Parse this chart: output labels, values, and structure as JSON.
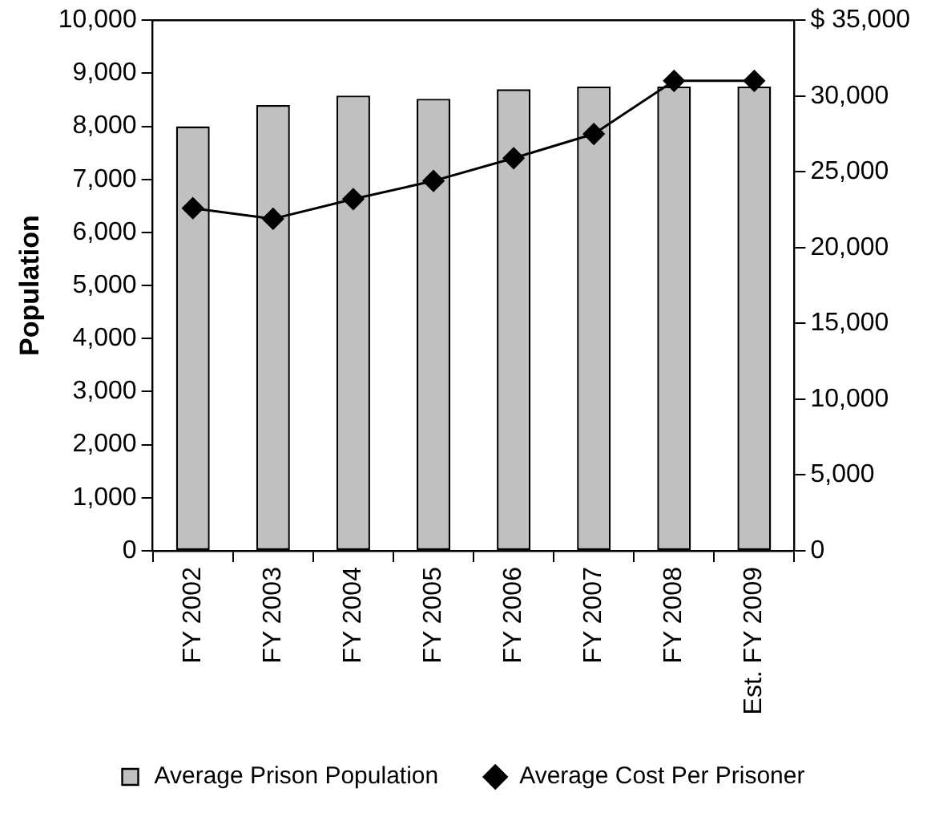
{
  "chart_data": {
    "type": "bar",
    "ylabel": "Population",
    "categories": [
      "FY 2002",
      "FY 2003",
      "FY 2004",
      "FY 2005",
      "FY 2006",
      "FY 2007",
      "FY 2008",
      "Est. FY 2009"
    ],
    "series": [
      {
        "name": "Average Prison Population",
        "color": "#c0c0c0",
        "values": [
          8000,
          8400,
          8580,
          8520,
          8700,
          8750,
          8750,
          8750
        ]
      },
      {
        "name": "Average Cost Per Prisoner",
        "type": "line",
        "axis": "y2",
        "color": "#000000",
        "marker": "diamond",
        "values": [
          22600,
          21900,
          23200,
          24400,
          25900,
          27500,
          31000,
          31000
        ]
      }
    ],
    "ylim": [
      0,
      10000
    ],
    "yticks": [
      0,
      {
        "value": 1000,
        "label": "1,000"
      },
      {
        "value": 2000,
        "label": "2,000"
      },
      {
        "value": 3000,
        "label": "3,000"
      },
      {
        "value": 4000,
        "label": "4,000"
      },
      {
        "value": 5000,
        "label": "5,000"
      },
      {
        "value": 6000,
        "label": "6,000"
      },
      {
        "value": 7000,
        "label": "7,000"
      },
      {
        "value": 8000,
        "label": "8,000"
      },
      {
        "value": 9000,
        "label": "9,000"
      },
      {
        "value": 10000,
        "label": "10,000"
      }
    ],
    "y2lim": [
      0,
      35000
    ],
    "y2ticks": [
      0,
      {
        "value": 5000,
        "label": "5,000"
      },
      {
        "value": 10000,
        "label": "10,000"
      },
      {
        "value": 15000,
        "label": "15,000"
      },
      {
        "value": 20000,
        "label": "20,000"
      },
      {
        "value": 25000,
        "label": "25,000"
      },
      {
        "value": 30000,
        "label": "30,000"
      },
      {
        "value": 35000,
        "label": "$ 35,000"
      }
    ],
    "grid": false,
    "legend": "bottom"
  }
}
